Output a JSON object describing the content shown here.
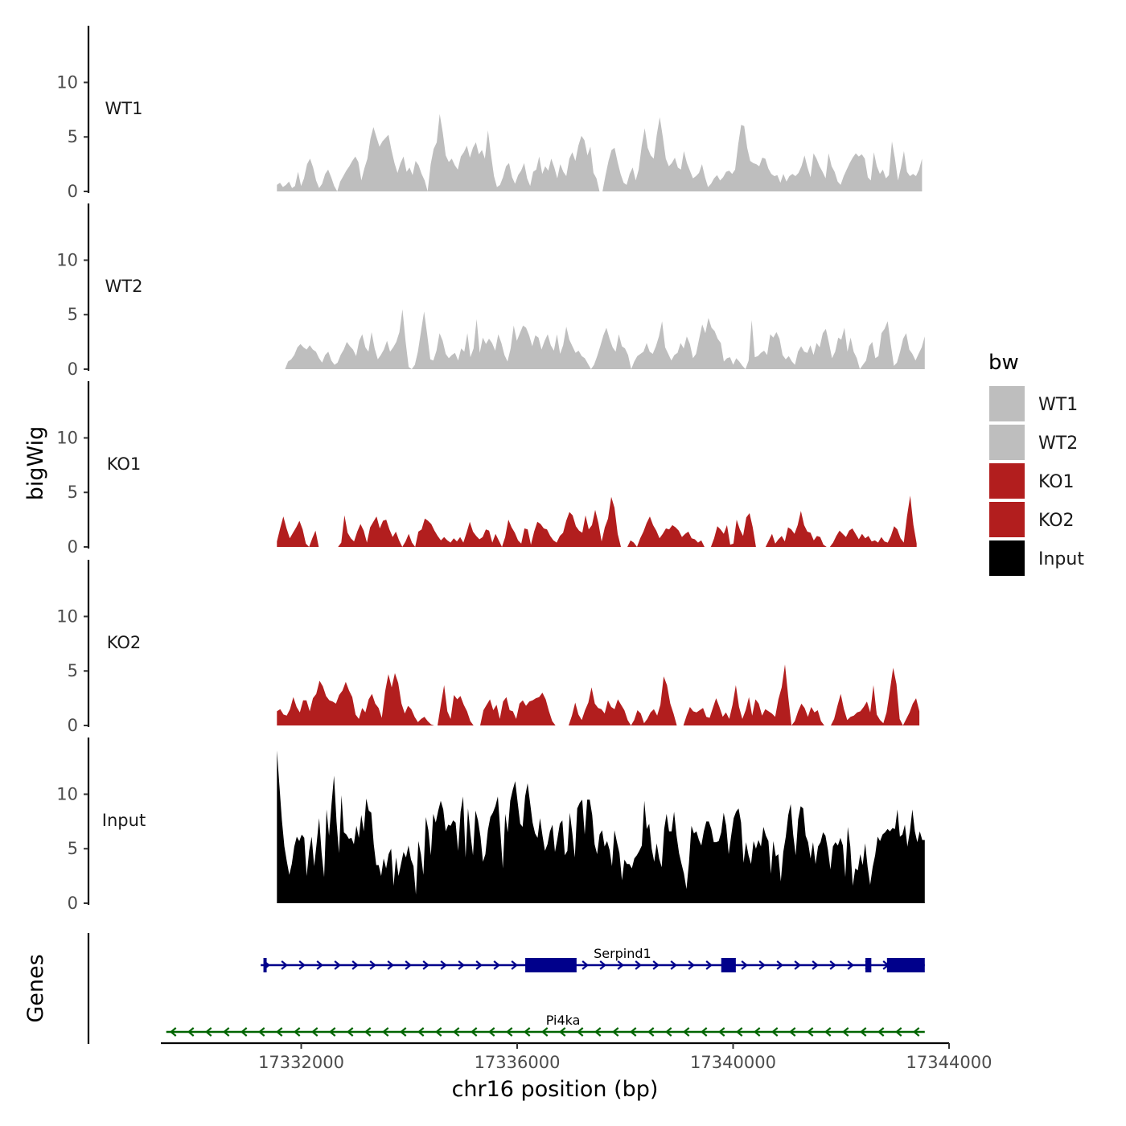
{
  "chart_data": {
    "type": "area",
    "ylabel": "bigWig",
    "xlabel": "chr16 position (bp)",
    "ylim": [
      0,
      15
    ],
    "y_ticks": [
      0,
      5,
      10
    ],
    "xlim": [
      17329400,
      17344000
    ],
    "x_ticks": [
      17332000,
      17336000,
      17340000,
      17344000
    ],
    "x_tick_labels": [
      "17332000",
      "17336000",
      "17340000",
      "17344000"
    ],
    "genes_label": "Genes",
    "legend": {
      "title": "bw",
      "entries": [
        {
          "label": "WT1",
          "color": "#BEBEBE"
        },
        {
          "label": "WT2",
          "color": "#BEBEBE"
        },
        {
          "label": "KO1",
          "color": "#B21E1E"
        },
        {
          "label": "KO2",
          "color": "#B21E1E"
        },
        {
          "label": "Input",
          "color": "#000000"
        }
      ]
    },
    "series": [
      {
        "name": "WT1",
        "color": "#BEBEBE",
        "x_start": 17331550,
        "x_end": 17343500,
        "values": [
          0.6,
          0.8,
          0.4,
          0.6,
          0.9,
          0.3,
          0.5,
          1.8,
          0.5,
          1.2,
          2.5,
          3.0,
          2.2,
          1.0,
          0.3,
          0.7,
          1.6,
          2.0,
          1.3,
          0.5,
          0,
          0.9,
          1.4,
          1.9,
          2.3,
          2.8,
          3.2,
          2.7,
          1.0,
          2.1,
          3.0,
          4.8,
          5.9,
          5.0,
          4.1,
          4.6,
          4.9,
          5.2,
          3.8,
          2.6,
          1.7,
          2.6,
          3.2,
          1.8,
          2.2,
          1.5,
          2.8,
          2.4,
          1.6,
          1.0,
          0,
          2.5,
          3.9,
          4.5,
          7.1,
          5.4,
          3.3,
          2.7,
          3.0,
          2.4,
          2.0,
          3.2,
          3.6,
          4.2,
          3.1,
          4.0,
          4.5,
          3.4,
          3.8,
          3.0,
          5.6,
          3.4,
          1.4,
          0.4,
          0.6,
          1.3,
          2.3,
          2.6,
          1.3,
          0.7,
          1.5,
          1.9,
          2.6,
          1.2,
          0.5,
          1.8,
          2.0,
          3.2,
          1.6,
          2.3,
          1.9,
          3.0,
          2.2,
          1.2,
          2.5,
          1.8,
          1.4,
          3.0,
          3.6,
          2.8,
          4.2,
          5.1,
          4.7,
          3.3,
          4.1,
          1.7,
          1.2,
          0,
          0,
          1.5,
          2.8,
          3.8,
          4.0,
          2.7,
          1.6,
          0.8,
          0.6,
          1.6,
          2.2,
          1.0,
          2.0,
          4.2,
          5.8,
          4.0,
          3.3,
          3.0,
          5.2,
          6.8,
          5.0,
          3.0,
          2.3,
          2.6,
          3.1,
          2.2,
          2.0,
          3.7,
          2.6,
          1.9,
          1.2,
          1.4,
          1.7,
          2.5,
          1.3,
          0.4,
          0.7,
          1.2,
          1.5,
          1.0,
          1.3,
          1.8,
          1.9,
          1.6,
          2.0,
          4.3,
          6.1,
          6.0,
          4.0,
          2.8,
          2.6,
          2.5,
          2.3,
          3.1,
          3.0,
          2.1,
          1.6,
          1.4,
          1.5,
          0.8,
          1.6,
          0.9,
          1.4,
          1.6,
          1.4,
          1.7,
          2.3,
          3.3,
          2.2,
          1.3,
          3.5,
          3.0,
          2.3,
          1.8,
          1.2,
          3.5,
          2.3,
          1.8,
          0.9,
          0.6,
          1.4,
          2.0,
          2.6,
          3.1,
          3.5,
          3.2,
          3.4,
          3.0,
          1.3,
          1.0,
          3.6,
          2.3,
          1.6,
          2.0,
          1.2,
          1.5,
          4.6,
          3.0,
          1.0,
          2.2,
          3.7,
          1.8,
          1.4,
          1.6,
          1.4,
          2.0,
          3.0
        ]
      },
      {
        "name": "WT2",
        "color": "#BEBEBE",
        "x_start": 17331700,
        "x_end": 17343550,
        "values": [
          0,
          0.7,
          0.9,
          1.3,
          2.0,
          2.3,
          2.0,
          1.8,
          2.2,
          1.8,
          1.6,
          1.0,
          0.6,
          1.3,
          1.6,
          0.8,
          0.4,
          0.6,
          1.3,
          1.8,
          2.5,
          2.1,
          1.8,
          1.2,
          2.6,
          3.2,
          2.0,
          1.6,
          3.4,
          1.9,
          0.9,
          1.3,
          1.8,
          2.6,
          1.6,
          2.0,
          2.5,
          3.4,
          5.5,
          2.6,
          0.2,
          0,
          0.4,
          1.6,
          3.5,
          5.3,
          3.2,
          0.9,
          0.8,
          1.7,
          3.3,
          2.6,
          1.4,
          1.0,
          1.3,
          1.5,
          0.8,
          1.9,
          1.6,
          3.3,
          1.1,
          1.9,
          4.6,
          1.5,
          2.9,
          2.3,
          2.8,
          2.4,
          1.7,
          3.2,
          2.4,
          1.3,
          0.7,
          1.9,
          4.0,
          2.6,
          3.3,
          4.0,
          3.8,
          3.1,
          2.1,
          3.1,
          2.9,
          1.8,
          2.6,
          3.2,
          2.2,
          1.7,
          3.2,
          1.4,
          2.2,
          3.9,
          2.7,
          2.1,
          1.5,
          1.7,
          1.2,
          1.0,
          0.5,
          0,
          0.4,
          1.2,
          2.1,
          3.1,
          3.8,
          2.8,
          2.0,
          1.6,
          3.2,
          2.1,
          1.9,
          1.3,
          0,
          0.7,
          1.2,
          1.4,
          1.6,
          2.4,
          1.6,
          1.4,
          2.1,
          3.0,
          4.4,
          2.0,
          1.4,
          0.8,
          1.3,
          1.5,
          2.4,
          1.9,
          3.0,
          2.3,
          1.0,
          1.4,
          2.8,
          4.1,
          3.3,
          4.7,
          3.8,
          3.5,
          2.8,
          2.4,
          0.7,
          1.0,
          1.1,
          0.4,
          1.0,
          0.7,
          0.3,
          0,
          0.8,
          4.5,
          1.1,
          1.2,
          1.5,
          1.7,
          1.3,
          3.2,
          2.9,
          3.4,
          2.8,
          1.3,
          0.9,
          1.2,
          0.7,
          0.4,
          1.6,
          2.1,
          1.6,
          1.5,
          2.2,
          1.3,
          2.4,
          2.0,
          3.3,
          3.7,
          2.4,
          1.0,
          1.6,
          2.9,
          2.7,
          3.8,
          1.6,
          2.9,
          1.6,
          1.0,
          0,
          0.4,
          0.8,
          2.1,
          2.5,
          1.0,
          1.2,
          3.3,
          3.7,
          4.4,
          2.3,
          0.3,
          0.6,
          1.6,
          2.8,
          3.3,
          1.8,
          1.4,
          0.8,
          1.4,
          2.0,
          3.0
        ]
      },
      {
        "name": "KO1",
        "color": "#B21E1E",
        "x_start": 17331550,
        "x_end": 17343400,
        "values": [
          0.5,
          1.7,
          2.8,
          1.7,
          0.8,
          1.3,
          1.8,
          2.4,
          1.6,
          0.3,
          0,
          0.8,
          1.5,
          0,
          0,
          0,
          0,
          0,
          0,
          0,
          0.4,
          2.9,
          1.3,
          0.8,
          0.5,
          1.4,
          2.1,
          1.5,
          0.4,
          1.8,
          2.3,
          2.8,
          1.7,
          2.4,
          2.5,
          1.6,
          0.9,
          1.4,
          0.6,
          0,
          0.5,
          1.2,
          0.4,
          0,
          1.4,
          1.6,
          2.6,
          2.4,
          2.1,
          1.5,
          1.0,
          0.6,
          0.9,
          0.6,
          0.4,
          0.8,
          0.5,
          0.9,
          0.4,
          1.3,
          2.3,
          1.4,
          1.0,
          0.7,
          0.9,
          1.6,
          1.5,
          0.4,
          1.2,
          0.6,
          0,
          0.9,
          2.5,
          1.8,
          1.3,
          0.6,
          0.3,
          1.7,
          1.6,
          0.2,
          1.4,
          2.3,
          2.1,
          1.7,
          1.6,
          1.0,
          0.6,
          0.4,
          1.0,
          1.3,
          2.4,
          3.2,
          2.9,
          1.9,
          1.5,
          1.3,
          2.9,
          1.6,
          2.0,
          3.4,
          2.2,
          0.5,
          1.8,
          2.6,
          4.6,
          3.6,
          1.2,
          0,
          0,
          0,
          0.6,
          0.4,
          0,
          0.8,
          1.4,
          2.2,
          2.8,
          2.0,
          1.5,
          0.8,
          1.2,
          1.7,
          1.6,
          2.0,
          1.8,
          1.5,
          0.9,
          1.2,
          1.4,
          0.8,
          0.7,
          0.4,
          0.6,
          0,
          0,
          0,
          0.8,
          1.9,
          1.6,
          1.2,
          2.0,
          0.2,
          0.3,
          2.5,
          1.6,
          1.0,
          2.7,
          3.1,
          1.8,
          0,
          0,
          0,
          0,
          0.6,
          1.2,
          0.3,
          0.7,
          1.0,
          0.5,
          1.8,
          1.6,
          1.2,
          2.0,
          3.3,
          2.0,
          1.4,
          1.3,
          0.6,
          1.0,
          0.9,
          0.2,
          0,
          0,
          0.4,
          1.0,
          1.5,
          1.2,
          0.9,
          1.5,
          1.7,
          1.2,
          0.7,
          1.2,
          0.8,
          1.0,
          0.5,
          0.6,
          0.4,
          0.9,
          0.5,
          0.4,
          1.0,
          1.9,
          1.6,
          0.8,
          0.4,
          2.8,
          4.7,
          2.0,
          0.3
        ]
      },
      {
        "name": "KO2",
        "color": "#B21E1E",
        "x_start": 17331550,
        "x_end": 17343450,
        "values": [
          1.3,
          1.5,
          1.0,
          0.9,
          1.5,
          2.6,
          1.7,
          1.2,
          2.3,
          2.3,
          1.3,
          2.5,
          2.9,
          4.1,
          3.6,
          2.7,
          2.3,
          2.2,
          2.0,
          2.8,
          3.2,
          4.0,
          3.2,
          2.6,
          1.0,
          0.6,
          1.6,
          1.2,
          2.4,
          2.9,
          2.0,
          1.6,
          0.7,
          3.1,
          4.7,
          3.5,
          4.8,
          3.9,
          2.0,
          1.1,
          1.8,
          1.5,
          0.8,
          0.3,
          0.6,
          0.8,
          0.4,
          0.1,
          0,
          0,
          1.9,
          3.7,
          1.3,
          0.6,
          2.8,
          2.4,
          2.7,
          1.9,
          1.3,
          0.4,
          0,
          0,
          0,
          1.4,
          1.9,
          2.4,
          1.4,
          1.9,
          0.6,
          2.2,
          2.6,
          1.4,
          1.3,
          0.6,
          2.0,
          2.3,
          1.8,
          2.2,
          2.3,
          2.5,
          2.6,
          3.0,
          2.4,
          1.3,
          0.4,
          0,
          0,
          0,
          0,
          0,
          0.9,
          2.1,
          1.0,
          0.5,
          1.4,
          2.1,
          3.5,
          2.0,
          1.6,
          1.5,
          1.1,
          2.3,
          1.7,
          1.5,
          2.4,
          1.9,
          1.4,
          0.5,
          0,
          0.5,
          1.4,
          1.1,
          0.2,
          0.6,
          1.2,
          1.5,
          0.9,
          1.9,
          4.5,
          3.7,
          2.0,
          1.1,
          0,
          0,
          0,
          0.9,
          1.7,
          1.3,
          1.2,
          1.4,
          1.6,
          0.8,
          0.7,
          1.6,
          2.5,
          1.7,
          0.8,
          1.2,
          0.6,
          1.9,
          3.7,
          1.7,
          0.6,
          1.4,
          2.6,
          0.9,
          2.4,
          2.0,
          0.9,
          1.5,
          1.3,
          1.1,
          0.8,
          2.4,
          3.5,
          5.6,
          2.6,
          0,
          0.4,
          1.3,
          2.0,
          1.6,
          0.8,
          1.7,
          1.2,
          1.4,
          0.4,
          0,
          0,
          0,
          0.6,
          1.8,
          2.9,
          1.5,
          0.5,
          0.8,
          0.9,
          1.2,
          1.3,
          1.7,
          2.2,
          1.2,
          3.7,
          1.0,
          0.5,
          0.2,
          1.2,
          3.2,
          5.3,
          3.8,
          0.6,
          0,
          0.6,
          1.2,
          2.0,
          2.5,
          1.3
        ]
      },
      {
        "name": "Input",
        "color": "#000000",
        "x_start": 17331550,
        "x_end": 17343550,
        "values": [
          14.0,
          10.8,
          7.6,
          5.2,
          3.8,
          2.6,
          3.6,
          5.2,
          6.1,
          5.7,
          6.3,
          6.0,
          2.5,
          4.8,
          6.1,
          3.4,
          5.5,
          7.8,
          4.6,
          2.4,
          8.6,
          6.2,
          9.1,
          11.7,
          7.5,
          4.6,
          9.9,
          6.5,
          6.3,
          5.9,
          6.0,
          5.4,
          7.1,
          6.0,
          8.1,
          6.6,
          9.6,
          8.5,
          8.3,
          5.4,
          3.5,
          3.5,
          2.5,
          4.1,
          3.2,
          4.5,
          5.0,
          1.6,
          4.2,
          2.5,
          3.6,
          4.7,
          4.2,
          5.3,
          4.0,
          3.4,
          0.8,
          5.7,
          4.5,
          2.6,
          7.9,
          6.7,
          4.4,
          8.2,
          7.4,
          8.5,
          9.4,
          8.6,
          6.6,
          7.2,
          7.1,
          7.6,
          7.4,
          4.8,
          8.4,
          9.8,
          4.2,
          8.7,
          6.3,
          4.4,
          8.5,
          7.6,
          6.1,
          3.8,
          4.5,
          6.7,
          7.9,
          8.3,
          8.9,
          9.8,
          6.6,
          3.2,
          8.2,
          6.5,
          9.4,
          10.4,
          11.2,
          9.2,
          7.3,
          7.0,
          9.8,
          11.0,
          9.2,
          7.4,
          6.4,
          6.0,
          7.8,
          6.2,
          4.8,
          5.4,
          6.6,
          7.2,
          4.7,
          5.9,
          7.3,
          7.6,
          4.4,
          4.8,
          8.3,
          6.4,
          4.2,
          8.7,
          9.2,
          9.5,
          6.3,
          9.5,
          9.5,
          8.1,
          5.4,
          4.5,
          6.3,
          6.7,
          5.2,
          5.7,
          4.9,
          3.4,
          6.7,
          5.6,
          4.6,
          2.1,
          4.0,
          3.6,
          3.6,
          3.2,
          4.1,
          4.4,
          4.8,
          5.3,
          9.4,
          6.8,
          7.3,
          5.0,
          3.8,
          5.5,
          4.1,
          3.3,
          6.8,
          8.2,
          6.6,
          6.6,
          8.4,
          6.2,
          4.6,
          3.6,
          2.7,
          1.3,
          3.7,
          7.1,
          6.4,
          6.6,
          5.8,
          5.3,
          6.6,
          7.5,
          7.5,
          6.8,
          5.6,
          5.6,
          5.7,
          6.5,
          8.3,
          7.1,
          4.5,
          6.2,
          7.8,
          8.4,
          8.7,
          7.4,
          3.7,
          5.6,
          4.4,
          3.6,
          5.7,
          5.0,
          5.8,
          5.2,
          7.0,
          6.2,
          5.7,
          2.7,
          5.7,
          4.3,
          4.5,
          2.0,
          4.7,
          6.1,
          8.1,
          9.1,
          6.3,
          4.4,
          7.7,
          8.9,
          8.7,
          6.2,
          5.6,
          4.1,
          5.6,
          3.6,
          5.2,
          5.6,
          6.5,
          6.2,
          4.9,
          3.1,
          5.2,
          5.6,
          5.3,
          6.0,
          5.3,
          2.4,
          7.0,
          5.2,
          1.6,
          3.2,
          3.0,
          4.5,
          3.5,
          5.5,
          3.3,
          1.7,
          3.3,
          4.4,
          6.1,
          5.7,
          6.3,
          6.5,
          6.8,
          6.6,
          6.9,
          6.8,
          8.6,
          6.1,
          6.3,
          7.2,
          5.2,
          6.6,
          8.6,
          6.6,
          5.6,
          6.6,
          5.8,
          5.8
        ]
      }
    ],
    "genes": [
      {
        "name": "Serpind1",
        "strand": "+",
        "color": "#00008B",
        "start": 17331250,
        "end": 17343550,
        "label_x": 17337950,
        "exons": [
          [
            17331300,
            17331350
          ],
          [
            17336150,
            17337100
          ],
          [
            17339780,
            17340050
          ],
          [
            17342450,
            17342560
          ],
          [
            17342850,
            17343550
          ]
        ]
      },
      {
        "name": "Pi4ka",
        "strand": "-",
        "color": "#006400",
        "start": 17329500,
        "end": 17343550,
        "label_x": 17336850,
        "exons": []
      }
    ]
  }
}
